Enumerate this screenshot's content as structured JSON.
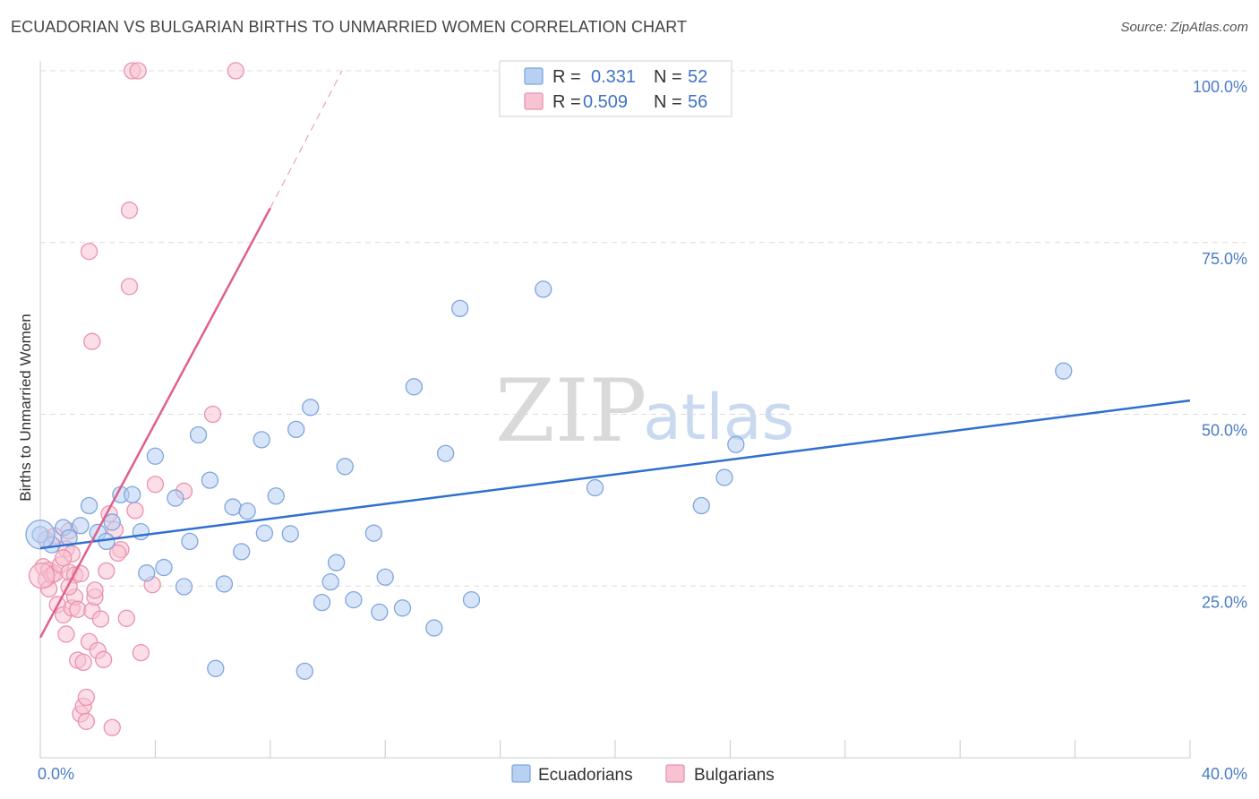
{
  "title": "ECUADORIAN VS BULGARIAN BIRTHS TO UNMARRIED WOMEN CORRELATION CHART",
  "source": "Source: ZipAtlas.com",
  "watermark": {
    "zip": "ZIP",
    "atlas": "atlas"
  },
  "colors": {
    "blue_fill": "#b8d0f2",
    "blue_stroke": "#7ea6de",
    "blue_line": "#2f6fcf",
    "pink_fill": "#f7c3d3",
    "pink_stroke": "#ea92ad",
    "pink_line": "#e0608a",
    "grid": "#dcdcdc",
    "tick_text": "#4a7cc7"
  },
  "legend": {
    "rows": [
      {
        "r_label": "R =",
        "r_value": "0.331",
        "n_label": "N =",
        "n_value": "52",
        "series": "Ecuadorians"
      },
      {
        "r_label": "R =",
        "r_value": "0.509",
        "n_label": "N =",
        "n_value": "56",
        "series": "Bulgarians"
      }
    ]
  },
  "chart_data": {
    "type": "scatter",
    "title": "ECUADORIAN VS BULGARIAN BIRTHS TO UNMARRIED WOMEN CORRELATION CHART",
    "xlabel": "",
    "ylabel": "Births to Unmarried Women",
    "xlim": [
      0,
      40
    ],
    "ylim": [
      0,
      100
    ],
    "x_tick_labels": [
      {
        "value": 0,
        "label": "0.0%"
      },
      {
        "value": 40,
        "label": "40.0%"
      }
    ],
    "y_tick_labels": [
      {
        "value": 25,
        "label": "25.0%"
      },
      {
        "value": 50,
        "label": "50.0%"
      },
      {
        "value": 75,
        "label": "75.0%"
      },
      {
        "value": 100,
        "label": "100.0%"
      }
    ],
    "grid": true,
    "legend_position": "top-center",
    "series": [
      {
        "name": "Ecuadorians",
        "color": "#b8d0f2",
        "trend": {
          "x": [
            0,
            40
          ],
          "y": [
            30.5,
            52.0
          ]
        },
        "points": [
          [
            0.0,
            32.5
          ],
          [
            0.4,
            31.0
          ],
          [
            0.8,
            33.5
          ],
          [
            1.0,
            32.0
          ],
          [
            1.4,
            33.8
          ],
          [
            1.7,
            36.7
          ],
          [
            2.0,
            32.8
          ],
          [
            2.3,
            31.5
          ],
          [
            2.5,
            34.3
          ],
          [
            2.8,
            38.3
          ],
          [
            3.2,
            38.3
          ],
          [
            3.5,
            32.9
          ],
          [
            3.7,
            26.9
          ],
          [
            4.0,
            43.9
          ],
          [
            4.3,
            27.7
          ],
          [
            4.7,
            37.8
          ],
          [
            5.0,
            24.9
          ],
          [
            5.2,
            31.5
          ],
          [
            5.5,
            47.0
          ],
          [
            5.9,
            40.4
          ],
          [
            6.1,
            13.0
          ],
          [
            6.4,
            25.3
          ],
          [
            6.7,
            36.5
          ],
          [
            7.0,
            30.0
          ],
          [
            7.2,
            35.9
          ],
          [
            7.7,
            46.3
          ],
          [
            7.8,
            32.7
          ],
          [
            8.2,
            38.1
          ],
          [
            8.7,
            32.6
          ],
          [
            8.9,
            47.8
          ],
          [
            9.2,
            12.6
          ],
          [
            9.4,
            51.0
          ],
          [
            9.8,
            22.6
          ],
          [
            10.1,
            25.6
          ],
          [
            10.3,
            28.4
          ],
          [
            10.6,
            42.4
          ],
          [
            10.9,
            23.0
          ],
          [
            11.6,
            32.7
          ],
          [
            11.8,
            21.2
          ],
          [
            12.0,
            26.3
          ],
          [
            12.6,
            21.8
          ],
          [
            13.0,
            54.0
          ],
          [
            13.7,
            18.9
          ],
          [
            14.1,
            44.3
          ],
          [
            14.6,
            65.4
          ],
          [
            15.0,
            23.0
          ],
          [
            17.5,
            68.2
          ],
          [
            19.3,
            39.3
          ],
          [
            23.0,
            36.7
          ],
          [
            23.8,
            40.8
          ],
          [
            24.2,
            45.6
          ],
          [
            35.6,
            56.3
          ]
        ]
      },
      {
        "name": "Bulgarians",
        "color": "#f7c3d3",
        "trend": {
          "x": [
            0,
            8.0
          ],
          "y": [
            17.5,
            80.0
          ]
        },
        "trend_extension": {
          "x": [
            8.0,
            10.5
          ],
          "y": [
            80.0,
            100.0
          ]
        },
        "points": [
          [
            0.1,
            27.8
          ],
          [
            0.2,
            26.0
          ],
          [
            0.3,
            27.3
          ],
          [
            0.3,
            24.6
          ],
          [
            0.4,
            26.6
          ],
          [
            0.5,
            26.8
          ],
          [
            0.6,
            22.3
          ],
          [
            0.7,
            28.1
          ],
          [
            0.8,
            20.8
          ],
          [
            0.9,
            30.4
          ],
          [
            0.9,
            18.0
          ],
          [
            1.0,
            33.0
          ],
          [
            1.0,
            27.0
          ],
          [
            1.1,
            29.7
          ],
          [
            1.1,
            21.8
          ],
          [
            1.2,
            23.4
          ],
          [
            1.2,
            26.6
          ],
          [
            1.3,
            21.6
          ],
          [
            1.3,
            14.2
          ],
          [
            1.4,
            26.8
          ],
          [
            1.4,
            6.4
          ],
          [
            1.5,
            13.9
          ],
          [
            1.5,
            7.5
          ],
          [
            1.6,
            5.3
          ],
          [
            1.6,
            8.8
          ],
          [
            1.7,
            73.7
          ],
          [
            1.7,
            16.9
          ],
          [
            1.8,
            60.6
          ],
          [
            1.8,
            21.4
          ],
          [
            1.9,
            23.4
          ],
          [
            2.0,
            15.6
          ],
          [
            2.1,
            20.2
          ],
          [
            2.2,
            14.3
          ],
          [
            2.3,
            27.2
          ],
          [
            2.4,
            35.5
          ],
          [
            2.5,
            4.4
          ],
          [
            2.6,
            33.2
          ],
          [
            2.8,
            30.3
          ],
          [
            3.0,
            20.3
          ],
          [
            3.1,
            68.6
          ],
          [
            3.1,
            79.7
          ],
          [
            3.2,
            100.0
          ],
          [
            3.3,
            36.0
          ],
          [
            3.4,
            100.0
          ],
          [
            3.5,
            15.3
          ],
          [
            3.9,
            25.2
          ],
          [
            4.0,
            39.8
          ],
          [
            5.0,
            38.8
          ],
          [
            6.0,
            50.0
          ],
          [
            6.8,
            100.0
          ],
          [
            0.2,
            31.8
          ],
          [
            0.5,
            32.3
          ],
          [
            0.8,
            29.1
          ],
          [
            1.9,
            24.4
          ],
          [
            2.7,
            29.8
          ],
          [
            1.0,
            24.9
          ]
        ]
      }
    ]
  }
}
